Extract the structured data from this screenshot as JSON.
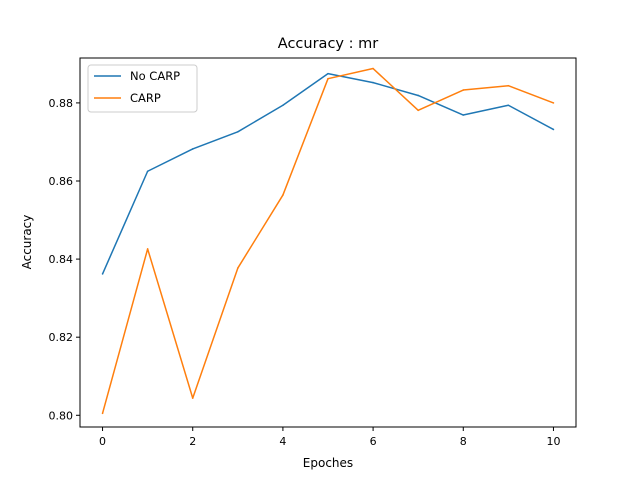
{
  "chart_data": {
    "type": "line",
    "title": "Accuracy : mr",
    "xlabel": "Epoches",
    "ylabel": "Accuracy",
    "xlim": [
      -0.5,
      10.5
    ],
    "ylim": [
      0.797,
      0.8915
    ],
    "xticks": [
      0,
      2,
      4,
      6,
      8,
      10
    ],
    "xtick_labels": [
      "0",
      "2",
      "4",
      "6",
      "8",
      "10"
    ],
    "yticks": [
      0.8,
      0.82,
      0.84,
      0.86,
      0.88
    ],
    "ytick_labels": [
      "0.80",
      "0.82",
      "0.84",
      "0.86",
      "0.88"
    ],
    "grid": false,
    "legend_position": "top-left",
    "x": [
      0,
      1,
      2,
      3,
      4,
      5,
      6,
      7,
      8,
      9,
      10
    ],
    "series": [
      {
        "name": "No CARP",
        "color": "#1f77b4",
        "values": [
          0.8362,
          0.8625,
          0.8682,
          0.8726,
          0.8794,
          0.8875,
          0.8852,
          0.8819,
          0.8769,
          0.8794,
          0.8732
        ]
      },
      {
        "name": "CARP",
        "color": "#ff7f0e",
        "values": [
          0.8005,
          0.8426,
          0.8044,
          0.8377,
          0.8564,
          0.8862,
          0.8888,
          0.8781,
          0.8833,
          0.8844,
          0.88
        ]
      }
    ]
  }
}
